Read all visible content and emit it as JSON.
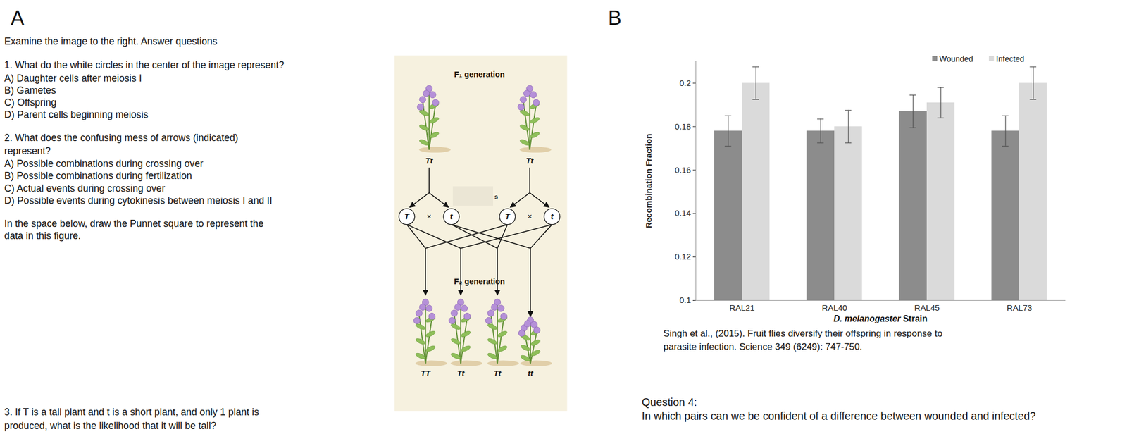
{
  "panel_a": {
    "label": "A",
    "intro": "Examine the image to the right.  Answer questions",
    "question_1": {
      "text": [
        "1. What do the white circles in the center of the image represent?"
      ],
      "options": [
        "A) Daughter cells after meiosis I",
        "B) Gametes",
        "C) Offspring",
        "D) Parent cells beginning meiosis"
      ]
    },
    "question_2": {
      "text": [
        "2. What does the confusing mess of arrows (indicated)",
        "represent?"
      ],
      "options": [
        "A) Possible combinations during crossing over",
        "B) Possible combinations during fertilization",
        "C) Actual events during crossing over",
        "D) Possible events during cytokinesis between meiosis I and II"
      ]
    },
    "instruction": [
      "In the space below, draw the Punnet square to represent the",
      "data in this figure."
    ],
    "question_3": [
      "3. If T is a tall plant and t is a short plant, and only 1 plant is",
      "produced, what is the likelihood that it will be tall?"
    ],
    "figure": {
      "top_label": "F₁ generation",
      "parents": [
        "Tt",
        "Tt"
      ],
      "gametes": [
        "T",
        "t",
        "T",
        "t"
      ],
      "cross_symbol": "×",
      "hidden_label": "s",
      "bottom_label": "F₂ generation",
      "offspring": [
        "TT",
        "Tt",
        "Tt",
        "tt"
      ]
    }
  },
  "panel_b": {
    "label": "B",
    "caption": [
      "Singh et al., (2015). Fruit flies diversify their offspring in response to",
      "parasite infection.  Science 349 (6249): 747-750."
    ],
    "question_4": [
      "Question 4:",
      "In which pairs can we be confident of a difference between wounded and infected?"
    ]
  },
  "chart_data": {
    "type": "bar",
    "categories": [
      "RAL21",
      "RAL40",
      "RAL45",
      "RAL73"
    ],
    "series": [
      {
        "name": "Wounded",
        "color": "#8c8c8c",
        "values": [
          0.178,
          0.178,
          0.187,
          0.178
        ],
        "errors": [
          0.007,
          0.0055,
          0.0075,
          0.007
        ]
      },
      {
        "name": "Infected",
        "color": "#dadada",
        "values": [
          0.2,
          0.18,
          0.191,
          0.2
        ],
        "errors": [
          0.0075,
          0.0075,
          0.007,
          0.0075
        ]
      }
    ],
    "xlabel": "D. melanogaster Strain",
    "ylabel": "Recombination Fraction",
    "ylim": [
      0.1,
      0.21
    ],
    "yticks": [
      0.1,
      0.12,
      0.14,
      0.16,
      0.18,
      0.2
    ],
    "grid": false,
    "legend": "top-right"
  }
}
